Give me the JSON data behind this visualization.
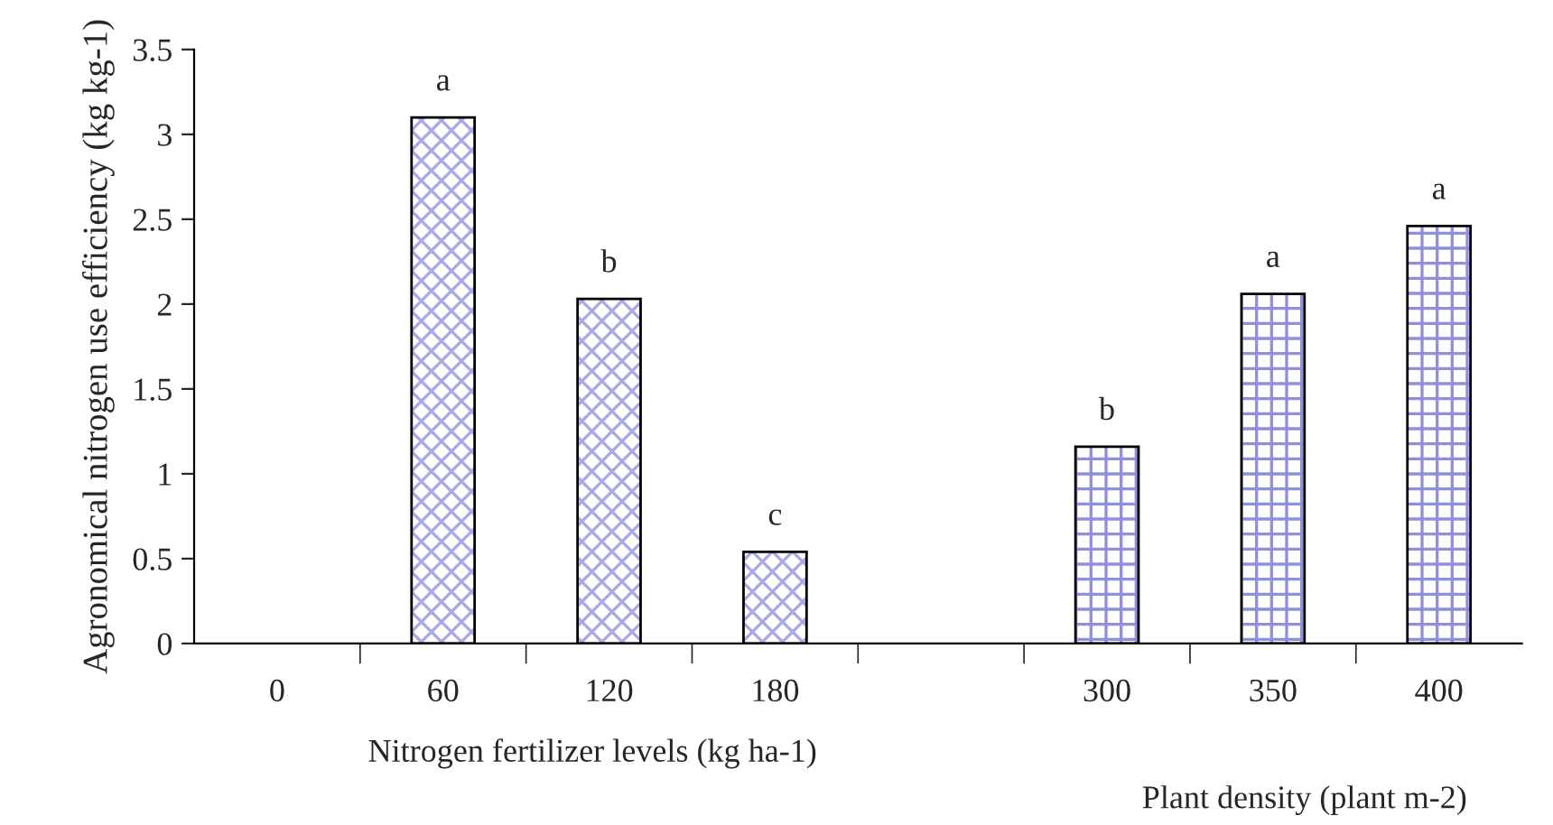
{
  "chart_data": {
    "type": "bar",
    "ylabel": "Agronomical nitrogen use efficiency (kg kg-1)",
    "xlabel": "Nitrogen fertilizer levels (kg ha-1)",
    "categories": [
      "0",
      "60",
      "120",
      "180",
      null,
      "300",
      "350",
      "400"
    ],
    "series": [
      {
        "color": "#a9a9e8",
        "values": [
          null,
          3.1,
          2.03,
          0.54,
          null,
          null,
          null,
          null
        ]
      },
      {
        "color": "#8f8fe0",
        "values": [
          null,
          null,
          null,
          null,
          null,
          1.16,
          2.06,
          2.46
        ]
      }
    ],
    "ylim": [
      0,
      3.5
    ],
    "yticks": [
      0,
      0.5,
      1,
      1.5,
      2,
      2.5,
      3,
      3.5
    ],
    "grid": false,
    "legend": false,
    "annotations": [
      {
        "text": "a",
        "x": "60",
        "y": 3.1
      },
      {
        "text": "b",
        "x": "120",
        "y": 2.03
      },
      {
        "text": "c",
        "x": "180",
        "y": 0.54
      },
      {
        "text": "b",
        "x": "300",
        "y": 1.16
      },
      {
        "text": "a",
        "x": "350",
        "y": 2.06
      },
      {
        "text": "a",
        "x": "400",
        "y": 2.46
      },
      "Plant density (plant m-2)"
    ]
  }
}
